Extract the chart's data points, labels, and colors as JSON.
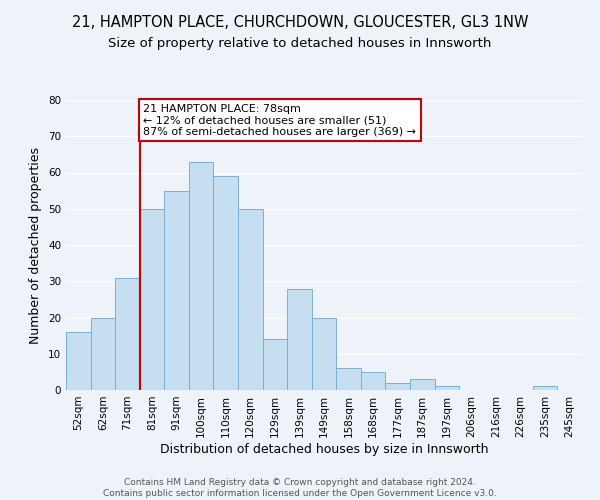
{
  "title": "21, HAMPTON PLACE, CHURCHDOWN, GLOUCESTER, GL3 1NW",
  "subtitle": "Size of property relative to detached houses in Innsworth",
  "xlabel": "Distribution of detached houses by size in Innsworth",
  "ylabel": "Number of detached properties",
  "bar_labels": [
    "52sqm",
    "62sqm",
    "71sqm",
    "81sqm",
    "91sqm",
    "100sqm",
    "110sqm",
    "120sqm",
    "129sqm",
    "139sqm",
    "149sqm",
    "158sqm",
    "168sqm",
    "177sqm",
    "187sqm",
    "197sqm",
    "206sqm",
    "216sqm",
    "226sqm",
    "235sqm",
    "245sqm"
  ],
  "bar_heights": [
    16,
    20,
    31,
    50,
    55,
    63,
    59,
    50,
    14,
    28,
    20,
    6,
    5,
    2,
    3,
    1,
    0,
    0,
    0,
    1,
    0
  ],
  "bar_color": "#c5dff0",
  "bar_edge_color": "#7bafd4",
  "vline_x_index": 3,
  "vline_color": "#cc0000",
  "annotation_text": "21 HAMPTON PLACE: 78sqm\n← 12% of detached houses are smaller (51)\n87% of semi-detached houses are larger (369) →",
  "annotation_box_color": "#ffffff",
  "annotation_box_edge": "#cc0000",
  "ylim": [
    0,
    80
  ],
  "yticks": [
    0,
    10,
    20,
    30,
    40,
    50,
    60,
    70,
    80
  ],
  "footer_line1": "Contains HM Land Registry data © Crown copyright and database right 2024.",
  "footer_line2": "Contains public sector information licensed under the Open Government Licence v3.0.",
  "bg_color": "#eef2f9",
  "grid_color": "#ffffff",
  "title_fontsize": 10.5,
  "subtitle_fontsize": 9.5,
  "axis_label_fontsize": 9,
  "tick_fontsize": 7.5,
  "annotation_fontsize": 8,
  "footer_fontsize": 6.5
}
